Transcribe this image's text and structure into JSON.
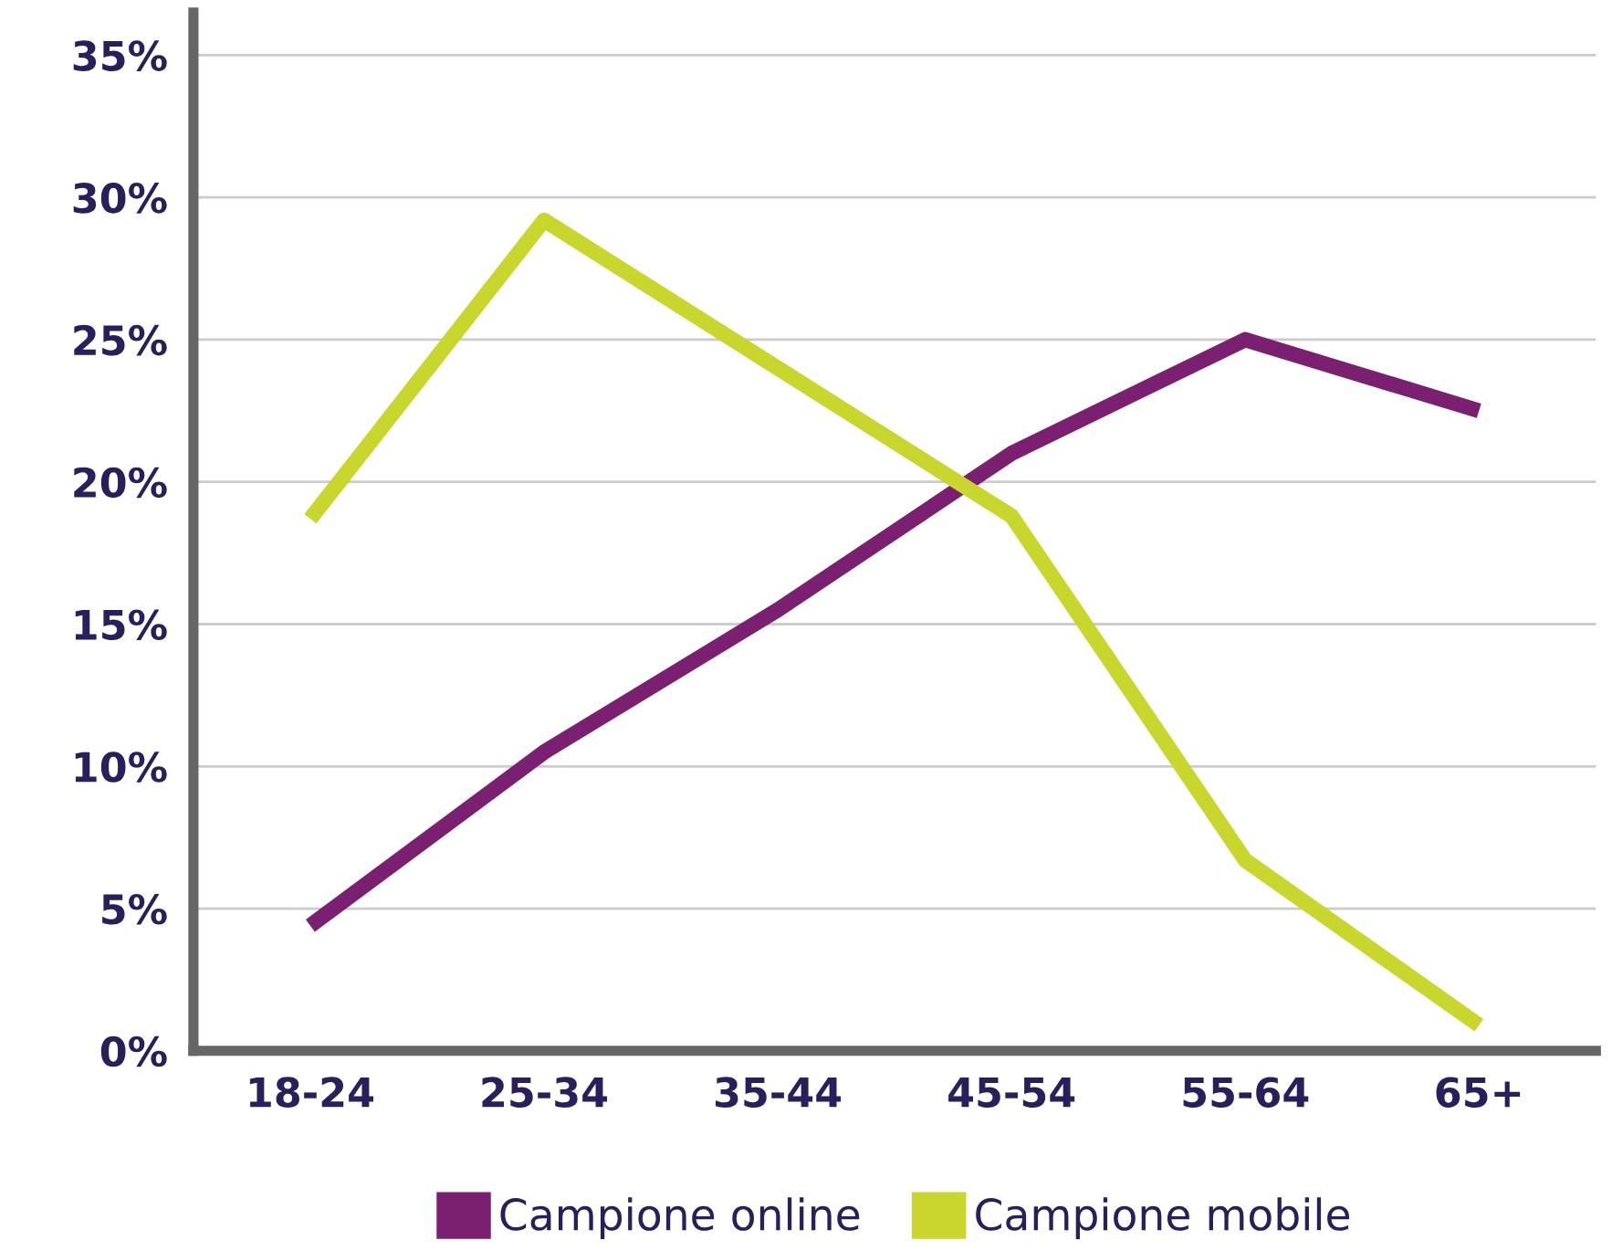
{
  "chart_data": {
    "type": "line",
    "categories": [
      "18-24",
      "25-34",
      "35-44",
      "45-54",
      "55-64",
      "65+"
    ],
    "series": [
      {
        "name": "Campione online",
        "color": "#7b1f70",
        "values": [
          4.4,
          10.5,
          15.5,
          21,
          25,
          22.5
        ]
      },
      {
        "name": "Campione mobile",
        "color": "#c8d62e",
        "values": [
          18.7,
          29.2,
          24,
          18.8,
          6.7,
          0.9
        ]
      }
    ],
    "ylim": [
      0,
      36.5
    ],
    "yticks": [
      {
        "value": 0,
        "label": "0%"
      },
      {
        "value": 5,
        "label": "5%"
      },
      {
        "value": 10,
        "label": "10%"
      },
      {
        "value": 15,
        "label": "15%"
      },
      {
        "value": 20,
        "label": "20%"
      },
      {
        "value": 25,
        "label": "25%"
      },
      {
        "value": 30,
        "label": "30%"
      },
      {
        "value": 35,
        "label": "35%"
      }
    ],
    "grid": "y",
    "legend": "bottom",
    "marker": "none",
    "line_style": "solid"
  }
}
